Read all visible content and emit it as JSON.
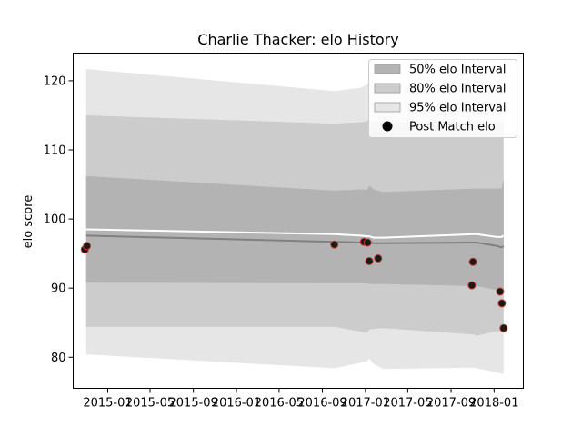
{
  "chart_data": {
    "type": "line",
    "title": "Charlie Thacker: elo History",
    "xlabel": "",
    "ylabel": "elo score",
    "xlim": [
      "2014-09-25",
      "2018-03-25"
    ],
    "ylim": [
      75.5,
      124
    ],
    "xticks": [
      "2015-01",
      "2015-05",
      "2015-09",
      "2016-01",
      "2016-05",
      "2016-09",
      "2017-01",
      "2017-05",
      "2017-09",
      "2018-01"
    ],
    "yticks": [
      80,
      90,
      100,
      110,
      120
    ],
    "grid": false,
    "legend_position": "top-right",
    "legend": [
      {
        "label": "50% elo Interval",
        "color": "#b3b3b3",
        "kind": "patch"
      },
      {
        "label": "80% elo Interval",
        "color": "#cccccc",
        "kind": "patch"
      },
      {
        "label": "95% elo Interval",
        "color": "#e6e6e6",
        "kind": "patch"
      },
      {
        "label": "Post Match elo",
        "color": "#000000",
        "kind": "marker"
      }
    ],
    "x": [
      "2014-11-01",
      "2016-10-05",
      "2016-12-20",
      "2017-01-05",
      "2017-01-12",
      "2017-01-25",
      "2017-02-20",
      "2017-11-05",
      "2017-11-12",
      "2018-01-10",
      "2018-01-22",
      "2018-01-28"
    ],
    "bands": {
      "p95": {
        "upper": [
          121.7,
          118.5,
          119.0,
          119.5,
          120.0,
          119.8,
          119.3,
          119.5,
          119.5,
          119.6,
          119.8,
          120.0
        ],
        "lower": [
          80.4,
          78.4,
          79.2,
          79.4,
          79.8,
          79.0,
          78.3,
          78.5,
          78.4,
          77.8,
          77.6,
          77.6
        ]
      },
      "p80": {
        "upper": [
          115.0,
          113.8,
          114.0,
          114.2,
          114.3,
          114.1,
          114.0,
          114.2,
          114.2,
          114.0,
          114.0,
          114.1
        ],
        "lower": [
          84.4,
          84.4,
          83.7,
          83.5,
          84.0,
          84.1,
          84.2,
          83.3,
          83.1,
          83.8,
          83.8,
          84.1
        ]
      },
      "p50": {
        "upper": [
          106.2,
          104.1,
          104.3,
          104.2,
          104.8,
          104.3,
          103.9,
          104.4,
          104.4,
          104.4,
          104.4,
          105.8
        ],
        "lower": [
          90.8,
          90.7,
          90.7,
          90.7,
          90.6,
          90.6,
          90.6,
          90.3,
          90.3,
          89.7,
          89.6,
          89.6
        ]
      }
    },
    "series": [
      {
        "values": [
          98.5,
          97.8,
          97.6,
          97.5,
          97.5,
          97.3,
          97.3,
          97.8,
          97.8,
          97.4,
          97.4,
          97.6
        ],
        "color": "#ffffff"
      },
      {
        "values": [
          97.6,
          96.7,
          96.6,
          96.6,
          96.6,
          96.5,
          96.5,
          96.6,
          96.6,
          96.1,
          95.9,
          96.1
        ],
        "color": "#808080"
      }
    ],
    "points": {
      "x": [
        "2014-10-28",
        "2014-11-03",
        "2016-10-05",
        "2016-12-28",
        "2017-01-07",
        "2017-01-12",
        "2017-02-06",
        "2017-10-30",
        "2017-11-02",
        "2018-01-18",
        "2018-01-23",
        "2018-01-28"
      ],
      "y": [
        95.6,
        96.1,
        96.3,
        96.7,
        96.6,
        93.9,
        94.3,
        90.4,
        93.8,
        89.5,
        87.8,
        84.2
      ],
      "fill": "#1a1a1a",
      "edge": "#c0392b"
    }
  }
}
